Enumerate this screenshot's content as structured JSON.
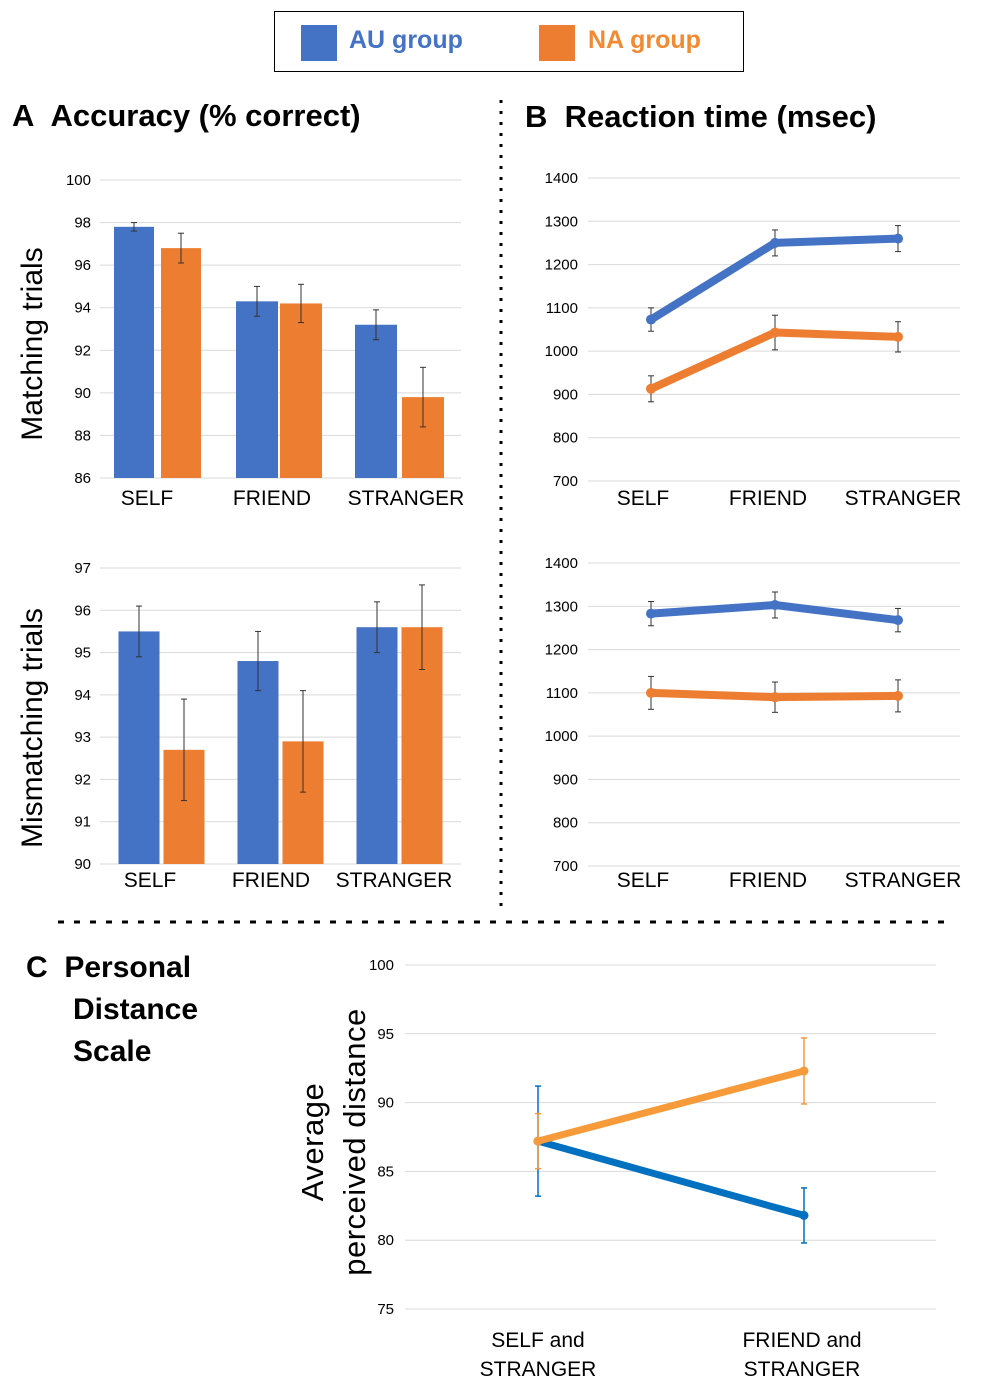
{
  "legend": {
    "au_label": "AU group",
    "na_label": "NA group",
    "au_color": "#4472C4",
    "na_color": "#ED7D31",
    "au_text_color": "#4472C4",
    "na_text_color": "#F28A33"
  },
  "titles": {
    "a_letter": "A",
    "a_title": "Accuracy (% correct)",
    "b_letter": "B",
    "b_title": "Reaction time (msec)",
    "c_letter": "C",
    "c_title_line1": "Personal",
    "c_title_line2": "Distance",
    "c_title_line3": "Scale"
  },
  "row_labels": {
    "matching": "Matching trials",
    "mismatching": "Mismatching trials"
  },
  "c_ylabel": {
    "line1": "Average",
    "line2": "perceived distance"
  },
  "chart_data": [
    {
      "id": "A-matching",
      "type": "bar",
      "categories": [
        "SELF",
        "FRIEND",
        "STRANGER"
      ],
      "series": [
        {
          "name": "AU group",
          "values": [
            97.8,
            94.3,
            93.2
          ],
          "err": [
            0.2,
            0.7,
            0.7
          ]
        },
        {
          "name": "NA group",
          "values": [
            96.8,
            94.2,
            89.8
          ],
          "err": [
            0.7,
            0.9,
            1.4
          ]
        }
      ],
      "ylim": [
        86,
        100
      ],
      "yticks": [
        86,
        88,
        90,
        92,
        94,
        96,
        98,
        100
      ],
      "grid": true
    },
    {
      "id": "A-mismatching",
      "type": "bar",
      "categories": [
        "SELF",
        "FRIEND",
        "STRANGER"
      ],
      "series": [
        {
          "name": "AU group",
          "values": [
            95.5,
            94.8,
            95.6
          ],
          "err": [
            0.6,
            0.7,
            0.6
          ]
        },
        {
          "name": "NA group",
          "values": [
            92.7,
            92.9,
            95.6
          ],
          "err": [
            1.2,
            1.2,
            1.0
          ]
        }
      ],
      "ylim": [
        90,
        97
      ],
      "yticks": [
        90,
        91,
        92,
        93,
        94,
        95,
        96,
        97
      ],
      "grid": true
    },
    {
      "id": "B-matching",
      "type": "line",
      "categories": [
        "SELF",
        "FRIEND",
        "STRANGER"
      ],
      "series": [
        {
          "name": "AU group",
          "values": [
            1073,
            1250,
            1260
          ],
          "err": [
            27,
            30,
            30
          ]
        },
        {
          "name": "NA group",
          "values": [
            913,
            1043,
            1033
          ],
          "err": [
            30,
            40,
            35
          ]
        }
      ],
      "ylim": [
        700,
        1400
      ],
      "yticks": [
        700,
        800,
        900,
        1000,
        1100,
        1200,
        1300,
        1400
      ],
      "grid": true
    },
    {
      "id": "B-mismatching",
      "type": "line",
      "categories": [
        "SELF",
        "FRIEND",
        "STRANGER"
      ],
      "series": [
        {
          "name": "AU group",
          "values": [
            1283,
            1303,
            1268
          ],
          "err": [
            28,
            30,
            27
          ]
        },
        {
          "name": "NA group",
          "values": [
            1100,
            1090,
            1093
          ],
          "err": [
            38,
            35,
            37
          ]
        }
      ],
      "ylim": [
        700,
        1400
      ],
      "yticks": [
        700,
        800,
        900,
        1000,
        1100,
        1200,
        1300,
        1400
      ],
      "grid": true
    },
    {
      "id": "C-distance",
      "type": "line",
      "categories": [
        "SELF and\nSTRANGER",
        "FRIEND and\nSTRANGER"
      ],
      "series": [
        {
          "name": "AU group",
          "values": [
            87.2,
            81.8
          ],
          "err": [
            4.0,
            2.0
          ],
          "color": "#0070C0"
        },
        {
          "name": "NA group",
          "values": [
            87.2,
            92.3
          ],
          "err": [
            2.0,
            2.4
          ],
          "color": "#F79A3A"
        }
      ],
      "ylim": [
        75,
        100
      ],
      "yticks": [
        75,
        80,
        85,
        90,
        95,
        100
      ],
      "grid": true
    }
  ]
}
